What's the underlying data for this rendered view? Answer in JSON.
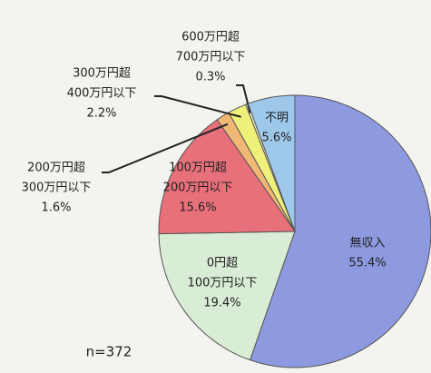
{
  "chart_data": {
    "type": "pie",
    "categories": [
      [
        "無収入"
      ],
      [
        "0円超",
        "100万円以下"
      ],
      [
        "100万円超",
        "200万円以下"
      ],
      [
        "200万円超",
        "300万円以下"
      ],
      [
        "300万円超",
        "400万円以下"
      ],
      [
        "600万円超",
        "700万円以下"
      ],
      [
        "不明"
      ]
    ],
    "values": [
      55.4,
      19.4,
      15.6,
      1.6,
      2.2,
      0.3,
      5.6
    ],
    "value_labels": [
      "55.4%",
      "19.4%",
      "15.6%",
      "1.6%",
      "2.2%",
      "0.3%",
      "5.6%"
    ],
    "colors": [
      "#8e9ae0",
      "#d9ecd6",
      "#e8707a",
      "#f1b775",
      "#eef07a",
      "#f6f3c8",
      "#9ec8ea"
    ],
    "annotation": "n=372"
  }
}
